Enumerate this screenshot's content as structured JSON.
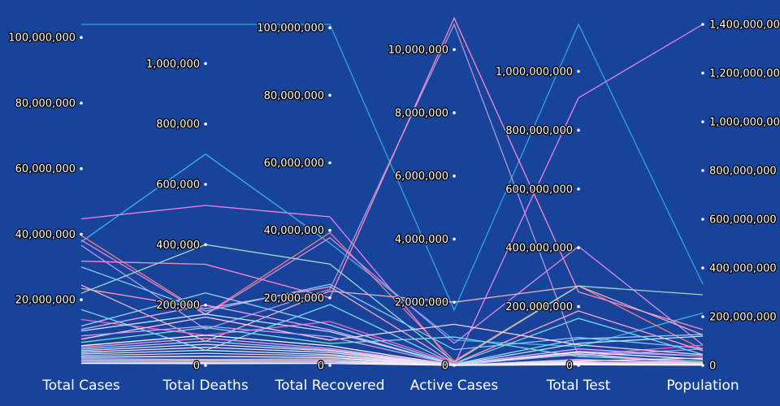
{
  "chart_data": {
    "type": "parallel-coordinates",
    "title": "",
    "background": "#17439a",
    "axes": [
      {
        "key": "total_cases",
        "label": "Total Cases",
        "range": [
          0,
          104000000
        ],
        "ticks": [
          20000000,
          40000000,
          60000000,
          80000000,
          100000000
        ],
        "tick_labels": [
          "20,000,000",
          "40,000,000",
          "60,000,000",
          "80,000,000",
          "100,000,000"
        ]
      },
      {
        "key": "total_deaths",
        "label": "Total Deaths",
        "range": [
          0,
          1130000
        ],
        "ticks": [
          0,
          200000,
          400000,
          600000,
          800000,
          1000000
        ],
        "tick_labels": [
          "0",
          "200,000",
          "400,000",
          "600,000",
          "800,000",
          "1,000,000"
        ]
      },
      {
        "key": "total_recovered",
        "label": "Total Recovered",
        "range": [
          0,
          101000000
        ],
        "ticks": [
          0,
          20000000,
          40000000,
          60000000,
          80000000,
          100000000
        ],
        "tick_labels": [
          "0",
          "20,000,000",
          "40,000,000",
          "60,000,000",
          "80,000,000",
          "100,000,000"
        ]
      },
      {
        "key": "active_cases",
        "label": "Active Cases",
        "range": [
          0,
          10800000
        ],
        "ticks": [
          0,
          2000000,
          4000000,
          6000000,
          8000000,
          10000000
        ],
        "tick_labels": [
          "0",
          "2,000,000",
          "4,000,000",
          "6,000,000",
          "8,000,000",
          "10,000,000"
        ]
      },
      {
        "key": "total_test",
        "label": "Total Test",
        "range": [
          0,
          1160000000
        ],
        "ticks": [
          0,
          200000000,
          400000000,
          600000000,
          800000000,
          1000000000
        ],
        "tick_labels": [
          "0",
          "200,000,000",
          "400,000,000",
          "600,000,000",
          "800,000,000",
          "1,000,000,000"
        ]
      },
      {
        "key": "population",
        "label": "Population",
        "range": [
          0,
          1400000000
        ],
        "ticks": [
          0,
          200000000,
          400000000,
          600000000,
          800000000,
          1000000000,
          1200000000,
          1400000000
        ],
        "tick_labels": [
          "0",
          "200,000,000",
          "400,000,000",
          "600,000,000",
          "800,000,000",
          "1,000,000,000",
          "1,200,000,000",
          "1,400,000,000"
        ]
      }
    ],
    "series": [
      {
        "color": "#2aa7d8",
        "values": [
          104000000,
          1130000,
          101000000,
          1750000,
          1160000000,
          334000000
        ]
      },
      {
        "color": "#ee82ee",
        "values": [
          44700000,
          530000,
          44000000,
          15000,
          910000000,
          1400000000
        ]
      },
      {
        "color": "#b09ad8",
        "values": [
          36600000,
          120000,
          22500000,
          10800000,
          32000000,
          67800000
        ]
      },
      {
        "color": "#3cb4e6",
        "values": [
          37700000,
          700000,
          36200000,
          800000,
          64000000,
          215000000
        ]
      },
      {
        "color": "#f08080",
        "values": [
          39600000,
          170000,
          39300000,
          140000,
          271000000,
          65600000
        ]
      },
      {
        "color": "#ff88cc",
        "values": [
          31800000,
          335000,
          20000000,
          11000000,
          250000000,
          147000000
        ]
      },
      {
        "color": "#dd88ee",
        "values": [
          38200000,
          168000,
          37800000,
          700000,
          405000000,
          84000000
        ]
      },
      {
        "color": "#ffa0c8",
        "values": [
          23500000,
          188000,
          23300000,
          60000,
          185000000,
          60300000
        ]
      },
      {
        "color": "#f0b0c0",
        "values": [
          24500000,
          80000,
          22000000,
          2000000,
          270000000,
          125000000
        ]
      },
      {
        "color": "#a0d8c8",
        "values": [
          22000000,
          400000,
          30000000,
          100000,
          270000000,
          290000000
        ]
      },
      {
        "color": "#88c8ff",
        "values": [
          30000000,
          180000,
          24000000,
          500000,
          95000000,
          70000000
        ]
      },
      {
        "color": "#7fd4f0",
        "values": [
          17000000,
          50000,
          18000000,
          50000,
          160000000,
          45000000
        ]
      },
      {
        "color": "#ff66cc",
        "values": [
          14000000,
          100000,
          13000000,
          80000,
          36000000,
          83000000
        ]
      },
      {
        "color": "#9ad0ff",
        "values": [
          12000000,
          240000,
          12000000,
          40000,
          90000000,
          127000000
        ]
      },
      {
        "color": "#e6a8ff",
        "values": [
          11000000,
          200000,
          10500000,
          30000,
          56000000,
          38000000
        ]
      },
      {
        "color": "#b8e8ff",
        "values": [
          10500000,
          170000,
          10000000,
          25000,
          75000000,
          120000000
        ]
      },
      {
        "color": "#ffd0e8",
        "values": [
          8000000,
          160000,
          7500000,
          1300000,
          70000000,
          44000000
        ]
      },
      {
        "color": "#c0a0ff",
        "values": [
          9000000,
          130000,
          8500000,
          20000,
          48000000,
          38000000
        ]
      },
      {
        "color": "#80e0e0",
        "values": [
          7000000,
          125000,
          6500000,
          900000,
          30000000,
          17000000
        ]
      },
      {
        "color": "#ffffff",
        "values": [
          6000000,
          100000,
          5800000,
          15000,
          45000000,
          25000000
        ]
      },
      {
        "color": "#ff99dd",
        "values": [
          5500000,
          90000,
          5000000,
          10000,
          40000000,
          10000000
        ]
      },
      {
        "color": "#aad4ff",
        "values": [
          5000000,
          80000,
          4600000,
          8000,
          38000000,
          5000000
        ]
      },
      {
        "color": "#f0d8ff",
        "values": [
          4500000,
          70000,
          4300000,
          6000,
          20000000,
          9000000
        ]
      },
      {
        "color": "#ffe0f0",
        "values": [
          4000000,
          60000,
          3800000,
          5000,
          15000000,
          30000000
        ]
      },
      {
        "color": "#d0f0ff",
        "values": [
          3500000,
          50000,
          3200000,
          4000,
          12000000,
          7000000
        ]
      },
      {
        "color": "#ffc8e8",
        "values": [
          3000000,
          40000,
          2800000,
          3000,
          10000000,
          12000000
        ]
      },
      {
        "color": "#ffffff",
        "values": [
          2500000,
          30000,
          2300000,
          2000,
          8000000,
          4000000
        ]
      },
      {
        "color": "#e8c8ff",
        "values": [
          2000000,
          20000,
          1900000,
          1500,
          6000000,
          8000000
        ]
      },
      {
        "color": "#ffffff",
        "values": [
          1500000,
          15000,
          1400000,
          1000,
          5000000,
          3000000
        ]
      },
      {
        "color": "#f8e0ff",
        "values": [
          1000000,
          10000,
          950000,
          800,
          3000000,
          2000000
        ]
      },
      {
        "color": "#ffffff",
        "values": [
          600000,
          6000,
          580000,
          500,
          2000000,
          1000000
        ]
      }
    ]
  }
}
